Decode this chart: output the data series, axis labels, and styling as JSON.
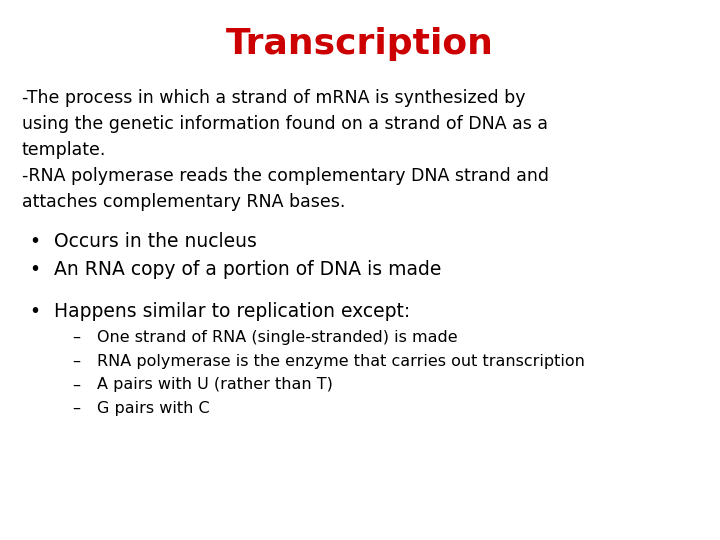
{
  "title": "Transcription",
  "title_color": "#cc0000",
  "title_fontsize": 26,
  "title_fontweight": "bold",
  "background_color": "#ffffff",
  "body_color": "#000000",
  "body_fontsize": 12.5,
  "para1_line1": "-The process in which a strand of mRNA is synthesized by",
  "para1_line2": "using the genetic information found on a strand of DNA as a",
  "para1_line3": "template.",
  "para2_line1": "-RNA polymerase reads the complementary DNA strand and",
  "para2_line2": "attaches complementary RNA bases.",
  "bullet1": "Occurs in the nucleus",
  "bullet2": "An RNA copy of a portion of DNA is made",
  "bullet3": "Happens similar to replication except:",
  "sub1": "One strand of RNA (single-stranded) is made",
  "sub2": "RNA polymerase is the enzyme that carries out transcription",
  "sub3": "A pairs with U (rather than T)",
  "sub4": "G pairs with C",
  "bullet_fontsize": 13.5,
  "sub_fontsize": 11.5
}
